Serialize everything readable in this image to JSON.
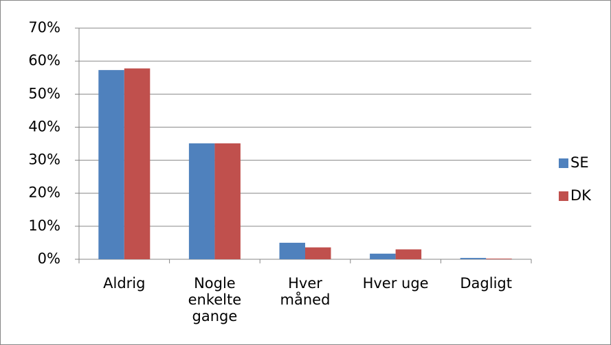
{
  "chart_data": {
    "type": "bar",
    "categories": [
      "Aldrig",
      "Nogle enkelte gange",
      "Hver måned",
      "Hver uge",
      "Dagligt"
    ],
    "series": [
      {
        "name": "SE",
        "color": "#4f81bd",
        "values": [
          57.3,
          35.1,
          5.0,
          1.7,
          0.4
        ]
      },
      {
        "name": "DK",
        "color": "#c0504d",
        "values": [
          57.8,
          35.1,
          3.6,
          3.0,
          0.2
        ]
      }
    ],
    "ylim": [
      0,
      70
    ],
    "yticks": [
      {
        "value": 0,
        "label": "0%"
      },
      {
        "value": 10,
        "label": "10%"
      },
      {
        "value": 20,
        "label": "20%"
      },
      {
        "value": 30,
        "label": "30%"
      },
      {
        "value": 40,
        "label": "40%"
      },
      {
        "value": 50,
        "label": "50%"
      },
      {
        "value": 60,
        "label": "60%"
      },
      {
        "value": 70,
        "label": "70%"
      }
    ],
    "grid": true,
    "legend": "right"
  }
}
